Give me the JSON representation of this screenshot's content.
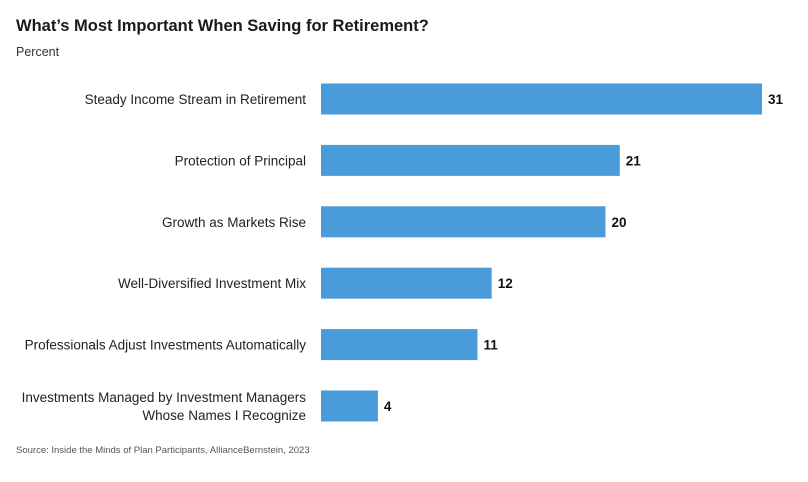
{
  "title": "What’s Most Important When Saving for Retirement?",
  "subtitle": "Percent",
  "source": "Source: Inside the Minds of Plan Participants, AllianceBernstein, 2023",
  "colors": {
    "bar": "#4a9bd9"
  },
  "chart_data": {
    "type": "bar",
    "orientation": "horizontal",
    "title": "What’s Most Important When Saving for Retirement?",
    "ylabel": "Percent",
    "categories": [
      "Steady Income Stream in Retirement",
      "Protection of Principal",
      "Growth as Markets Rise",
      "Well-Diversified Investment Mix",
      "Professionals Adjust Investments Automatically",
      "Investments Managed by Investment Managers Whose Names I Recognize"
    ],
    "category_lines": [
      [
        "Steady Income Stream in Retirement"
      ],
      [
        "Protection of Principal"
      ],
      [
        "Growth as Markets Rise"
      ],
      [
        "Well-Diversified Investment Mix"
      ],
      [
        "Professionals Adjust Investments Automatically"
      ],
      [
        "Investments Managed by Investment Managers",
        "Whose Names I Recognize"
      ]
    ],
    "values": [
      31,
      21,
      20,
      12,
      11,
      4
    ],
    "value_labels": [
      "31",
      "21",
      "20",
      "12",
      "11",
      "4"
    ],
    "xlim": [
      0,
      31
    ],
    "grid": false,
    "legend": "none"
  }
}
